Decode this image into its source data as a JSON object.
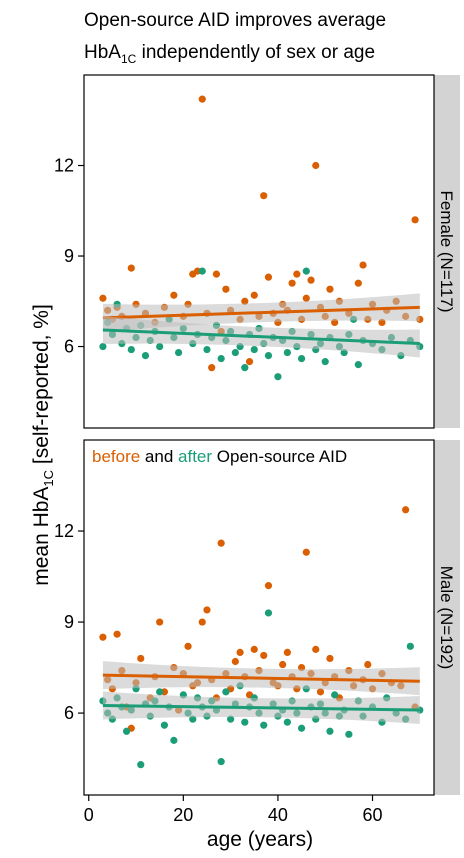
{
  "chart_data": {
    "type": "scatter",
    "title_line1": "Open-source AID improves average",
    "title_line2_pre": "HbA",
    "title_line2_sub": "1C",
    "title_line2_post": " independently of sex or age",
    "xlabel": "age (years)",
    "ylabel_pre": "mean HbA",
    "ylabel_sub": "1C",
    "ylabel_post": " [self-reported, %]",
    "annotation": {
      "before": "before",
      "and": " and ",
      "after": "after",
      "rest": " Open-source AID"
    },
    "colors": {
      "before": "#d95f02",
      "after": "#1b9e77",
      "ci": "#bdbdbd",
      "strip": "#d3d3d3"
    },
    "xlim": [
      -1,
      73
    ],
    "ylim": [
      3.3,
      15.0
    ],
    "x_ticks": [
      0,
      20,
      40,
      60
    ],
    "x_tick_labels": [
      "0",
      "20",
      "40",
      "60"
    ],
    "y_ticks": [
      6,
      9,
      12
    ],
    "y_tick_labels": [
      "6",
      "9",
      "12"
    ],
    "panels": [
      {
        "strip": "Female (N=117)",
        "series": [
          {
            "name": "before",
            "trend": [
              [
                3,
                6.95
              ],
              [
                70,
                7.3
              ]
            ],
            "points": [
              [
                3,
                7.6
              ],
              [
                4,
                7.2
              ],
              [
                5,
                6.9
              ],
              [
                6,
                7.3
              ],
              [
                7,
                7.0
              ],
              [
                9,
                8.6
              ],
              [
                10,
                7.4
              ],
              [
                12,
                7.1
              ],
              [
                14,
                6.8
              ],
              [
                16,
                7.3
              ],
              [
                18,
                7.7
              ],
              [
                20,
                7.0
              ],
              [
                21,
                7.4
              ],
              [
                22,
                8.4
              ],
              [
                23,
                8.5
              ],
              [
                24,
                14.2
              ],
              [
                25,
                7.1
              ],
              [
                26,
                5.3
              ],
              [
                27,
                8.4
              ],
              [
                28,
                6.5
              ],
              [
                29,
                7.9
              ],
              [
                30,
                7.2
              ],
              [
                32,
                6.9
              ],
              [
                33,
                7.5
              ],
              [
                34,
                5.5
              ],
              [
                35,
                7.7
              ],
              [
                36,
                7.0
              ],
              [
                37,
                11.0
              ],
              [
                38,
                8.3
              ],
              [
                39,
                7.1
              ],
              [
                40,
                6.8
              ],
              [
                41,
                7.4
              ],
              [
                42,
                7.2
              ],
              [
                43,
                8.1
              ],
              [
                44,
                8.4
              ],
              [
                45,
                6.9
              ],
              [
                46,
                7.6
              ],
              [
                47,
                8.2
              ],
              [
                48,
                12.0
              ],
              [
                49,
                7.3
              ],
              [
                50,
                7.0
              ],
              [
                51,
                7.9
              ],
              [
                52,
                6.8
              ],
              [
                53,
                7.5
              ],
              [
                55,
                7.1
              ],
              [
                57,
                8.1
              ],
              [
                58,
                8.7
              ],
              [
                59,
                6.9
              ],
              [
                60,
                7.4
              ],
              [
                62,
                6.8
              ],
              [
                63,
                7.2
              ],
              [
                65,
                7.5
              ],
              [
                67,
                7.0
              ],
              [
                69,
                10.2
              ],
              [
                70,
                6.9
              ]
            ]
          },
          {
            "name": "after",
            "trend": [
              [
                3,
                6.55
              ],
              [
                70,
                6.1
              ]
            ],
            "points": [
              [
                3,
                6.0
              ],
              [
                4,
                6.8
              ],
              [
                5,
                6.4
              ],
              [
                6,
                7.4
              ],
              [
                7,
                6.1
              ],
              [
                8,
                6.6
              ],
              [
                9,
                5.9
              ],
              [
                10,
                6.3
              ],
              [
                11,
                6.7
              ],
              [
                12,
                5.7
              ],
              [
                13,
                6.2
              ],
              [
                14,
                6.5
              ],
              [
                15,
                6.0
              ],
              [
                17,
                6.9
              ],
              [
                18,
                6.3
              ],
              [
                19,
                5.8
              ],
              [
                20,
                6.6
              ],
              [
                22,
                6.1
              ],
              [
                23,
                6.4
              ],
              [
                24,
                8.5
              ],
              [
                25,
                5.9
              ],
              [
                26,
                6.3
              ],
              [
                27,
                6.7
              ],
              [
                28,
                5.6
              ],
              [
                29,
                6.2
              ],
              [
                30,
                6.5
              ],
              [
                31,
                5.8
              ],
              [
                32,
                6.0
              ],
              [
                33,
                5.3
              ],
              [
                34,
                6.4
              ],
              [
                35,
                5.9
              ],
              [
                36,
                6.6
              ],
              [
                37,
                6.1
              ],
              [
                38,
                5.7
              ],
              [
                39,
                6.3
              ],
              [
                40,
                5.0
              ],
              [
                41,
                6.2
              ],
              [
                42,
                5.8
              ],
              [
                43,
                6.5
              ],
              [
                44,
                6.0
              ],
              [
                45,
                5.6
              ],
              [
                46,
                8.5
              ],
              [
                47,
                6.4
              ],
              [
                48,
                5.9
              ],
              [
                49,
                6.1
              ],
              [
                50,
                5.5
              ],
              [
                51,
                6.3
              ],
              [
                53,
                6.0
              ],
              [
                54,
                5.8
              ],
              [
                55,
                6.4
              ],
              [
                56,
                6.9
              ],
              [
                57,
                5.4
              ],
              [
                58,
                6.2
              ],
              [
                60,
                6.1
              ],
              [
                62,
                5.9
              ],
              [
                64,
                6.3
              ],
              [
                66,
                5.7
              ],
              [
                68,
                6.2
              ],
              [
                70,
                6.0
              ]
            ]
          }
        ]
      },
      {
        "strip": "Male (N=192)",
        "series": [
          {
            "name": "before",
            "trend": [
              [
                3,
                7.25
              ],
              [
                70,
                7.05
              ]
            ],
            "points": [
              [
                3,
                8.5
              ],
              [
                4,
                7.1
              ],
              [
                5,
                6.8
              ],
              [
                6,
                8.6
              ],
              [
                7,
                7.4
              ],
              [
                8,
                6.2
              ],
              [
                9,
                5.5
              ],
              [
                10,
                7.0
              ],
              [
                11,
                7.8
              ],
              [
                13,
                6.5
              ],
              [
                14,
                7.2
              ],
              [
                15,
                9.0
              ],
              [
                16,
                6.7
              ],
              [
                18,
                7.5
              ],
              [
                19,
                6.1
              ],
              [
                20,
                7.3
              ],
              [
                21,
                8.2
              ],
              [
                22,
                6.9
              ],
              [
                23,
                7.0
              ],
              [
                24,
                9.0
              ],
              [
                25,
                9.4
              ],
              [
                26,
                7.1
              ],
              [
                27,
                6.5
              ],
              [
                28,
                11.6
              ],
              [
                29,
                7.3
              ],
              [
                30,
                6.8
              ],
              [
                31,
                7.7
              ],
              [
                32,
                8.0
              ],
              [
                33,
                7.2
              ],
              [
                34,
                6.6
              ],
              [
                35,
                8.1
              ],
              [
                36,
                7.4
              ],
              [
                37,
                7.9
              ],
              [
                38,
                10.2
              ],
              [
                39,
                7.0
              ],
              [
                40,
                6.9
              ],
              [
                41,
                7.6
              ],
              [
                42,
                8.0
              ],
              [
                43,
                7.2
              ],
              [
                44,
                6.8
              ],
              [
                45,
                7.5
              ],
              [
                46,
                11.3
              ],
              [
                47,
                7.3
              ],
              [
                48,
                8.1
              ],
              [
                49,
                6.7
              ],
              [
                50,
                7.0
              ],
              [
                51,
                7.8
              ],
              [
                52,
                7.2
              ],
              [
                53,
                6.5
              ],
              [
                55,
                7.4
              ],
              [
                56,
                6.9
              ],
              [
                58,
                7.1
              ],
              [
                59,
                7.6
              ],
              [
                60,
                6.8
              ],
              [
                62,
                7.3
              ],
              [
                64,
                7.0
              ],
              [
                66,
                6.9
              ],
              [
                67,
                12.7
              ],
              [
                69,
                6.2
              ]
            ]
          },
          {
            "name": "after",
            "trend": [
              [
                3,
                6.25
              ],
              [
                70,
                6.1
              ]
            ],
            "points": [
              [
                3,
                6.4
              ],
              [
                4,
                6.0
              ],
              [
                5,
                5.8
              ],
              [
                6,
                6.5
              ],
              [
                7,
                6.2
              ],
              [
                8,
                5.4
              ],
              [
                9,
                6.1
              ],
              [
                10,
                6.8
              ],
              [
                11,
                4.3
              ],
              [
                12,
                6.3
              ],
              [
                13,
                5.9
              ],
              [
                14,
                6.4
              ],
              [
                15,
                6.7
              ],
              [
                16,
                5.6
              ],
              [
                17,
                6.2
              ],
              [
                18,
                5.1
              ],
              [
                20,
                6.6
              ],
              [
                21,
                6.0
              ],
              [
                22,
                5.8
              ],
              [
                23,
                6.5
              ],
              [
                24,
                6.2
              ],
              [
                25,
                5.9
              ],
              [
                26,
                6.4
              ],
              [
                27,
                6.1
              ],
              [
                28,
                4.4
              ],
              [
                29,
                6.7
              ],
              [
                30,
                5.8
              ],
              [
                31,
                6.3
              ],
              [
                32,
                6.9
              ],
              [
                33,
                5.7
              ],
              [
                34,
                6.2
              ],
              [
                35,
                6.5
              ],
              [
                36,
                6.0
              ],
              [
                37,
                5.6
              ],
              [
                38,
                9.3
              ],
              [
                39,
                6.3
              ],
              [
                40,
                5.9
              ],
              [
                41,
                6.1
              ],
              [
                42,
                5.7
              ],
              [
                43,
                6.4
              ],
              [
                44,
                6.0
              ],
              [
                45,
                5.5
              ],
              [
                46,
                6.8
              ],
              [
                47,
                6.2
              ],
              [
                48,
                5.8
              ],
              [
                49,
                6.3
              ],
              [
                50,
                6.0
              ],
              [
                51,
                5.4
              ],
              [
                52,
                6.6
              ],
              [
                53,
                5.9
              ],
              [
                54,
                6.1
              ],
              [
                55,
                5.3
              ],
              [
                57,
                6.4
              ],
              [
                58,
                5.9
              ],
              [
                60,
                6.2
              ],
              [
                62,
                5.7
              ],
              [
                63,
                6.5
              ],
              [
                65,
                6.0
              ],
              [
                67,
                5.8
              ],
              [
                68,
                8.2
              ],
              [
                70,
                6.1
              ]
            ]
          }
        ]
      }
    ]
  }
}
